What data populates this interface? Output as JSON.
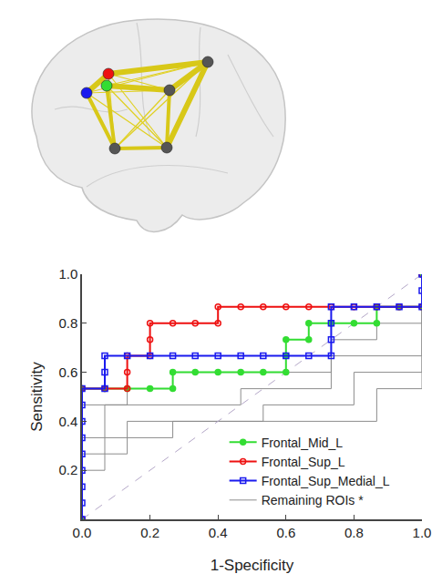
{
  "chart_data": {
    "type": "line",
    "x_label": "1-Specificity",
    "y_label": "Sensitivity",
    "xlim": [
      0,
      1
    ],
    "ylim": [
      0,
      1
    ],
    "xticks": [
      {
        "value": 0,
        "label": "0.0"
      },
      0.2,
      0.4,
      0.6,
      0.8,
      {
        "value": 1,
        "label": "1.0"
      }
    ],
    "yticks": [
      0.2,
      0.4,
      0.6,
      0.8,
      {
        "value": 1,
        "label": "1.0"
      }
    ],
    "grid": false,
    "legend": "lower right",
    "series": [
      {
        "name": "Remaining ROIs *",
        "color": "#8c8c8c",
        "line_style": "solid",
        "x": [
          0,
          0,
          0.133,
          0.133,
          0.267,
          0.267,
          0.733,
          0.733,
          0.867,
          0.867,
          1,
          1
        ],
        "values": [
          0,
          0.467,
          0.467,
          0.533,
          0.533,
          0.6,
          0.6,
          0.733,
          0.733,
          0.8,
          0.8,
          1
        ]
      },
      {
        "name": "Remaining ROIs *",
        "color": "#8c8c8c",
        "line_style": "solid",
        "x": [
          0,
          0,
          0.067,
          0.067,
          0.467,
          0.467,
          0.733,
          0.733,
          1,
          1
        ],
        "values": [
          0,
          0.333,
          0.333,
          0.467,
          0.467,
          0.533,
          0.533,
          0.667,
          0.667,
          1
        ]
      },
      {
        "name": "Remaining ROIs *",
        "color": "#8c8c8c",
        "line_style": "solid",
        "x": [
          0,
          0,
          0.133,
          0.133,
          0.533,
          0.533,
          0.8,
          0.8,
          1,
          1
        ],
        "values": [
          0,
          0.267,
          0.267,
          0.4,
          0.4,
          0.467,
          0.467,
          0.6,
          0.6,
          1
        ]
      },
      {
        "name": "Remaining ROIs *",
        "color": "#8c8c8c",
        "line_style": "solid",
        "x": [
          0,
          0,
          0.067,
          0.067,
          0.267,
          0.267,
          0.867,
          0.867,
          1,
          1
        ],
        "values": [
          0,
          0.2,
          0.2,
          0.333,
          0.333,
          0.4,
          0.4,
          0.533,
          0.533,
          1
        ]
      },
      {
        "color": "#b4a7c8",
        "line_style": "dashed",
        "x": [
          0,
          1
        ],
        "values": [
          0,
          1
        ]
      },
      {
        "name": "Frontal_Mid_L",
        "color": "#33dd33",
        "line_style": "solid",
        "marker": "circle",
        "x": [
          0,
          0,
          0.067,
          0.133,
          0.2,
          0.267,
          0.267,
          0.333,
          0.4,
          0.467,
          0.533,
          0.6,
          0.6,
          0.6,
          0.667,
          0.667,
          0.733,
          0.8,
          0.867,
          0.867,
          0.933,
          1,
          1
        ],
        "values": [
          0,
          0.533,
          0.533,
          0.533,
          0.533,
          0.533,
          0.6,
          0.6,
          0.6,
          0.6,
          0.6,
          0.6,
          0.667,
          0.733,
          0.733,
          0.8,
          0.8,
          0.8,
          0.8,
          0.867,
          0.867,
          0.867,
          1
        ]
      },
      {
        "name": "Frontal_Sup_L",
        "color": "#ee1111",
        "line_style": "solid",
        "marker": "circle-open",
        "x": [
          0,
          0,
          0.067,
          0.133,
          0.133,
          0.133,
          0.2,
          0.2,
          0.2,
          0.267,
          0.333,
          0.4,
          0.4,
          0.467,
          0.533,
          0.6,
          0.667,
          0.733,
          0.8,
          0.867,
          0.933,
          1,
          1
        ],
        "values": [
          0,
          0.533,
          0.533,
          0.533,
          0.6,
          0.667,
          0.667,
          0.733,
          0.8,
          0.8,
          0.8,
          0.8,
          0.867,
          0.867,
          0.867,
          0.867,
          0.867,
          0.867,
          0.867,
          0.867,
          0.867,
          0.867,
          1
        ]
      },
      {
        "name": "Frontal_Sup_Medial_L",
        "color": "#1a1aee",
        "line_style": "solid",
        "marker": "square-open",
        "x": [
          0,
          0,
          0,
          0,
          0,
          0,
          0,
          0,
          0,
          0.067,
          0.067,
          0.067,
          0.133,
          0.2,
          0.267,
          0.333,
          0.4,
          0.467,
          0.533,
          0.6,
          0.667,
          0.733,
          0.733,
          0.733,
          0.733,
          0.8,
          0.867,
          0.933,
          1,
          1,
          1
        ],
        "values": [
          0,
          0.067,
          0.133,
          0.2,
          0.267,
          0.333,
          0.4,
          0.467,
          0.533,
          0.533,
          0.6,
          0.667,
          0.667,
          0.667,
          0.667,
          0.667,
          0.667,
          0.667,
          0.667,
          0.667,
          0.667,
          0.667,
          0.733,
          0.8,
          0.867,
          0.867,
          0.867,
          0.867,
          0.867,
          0.933,
          1
        ]
      }
    ]
  }
}
